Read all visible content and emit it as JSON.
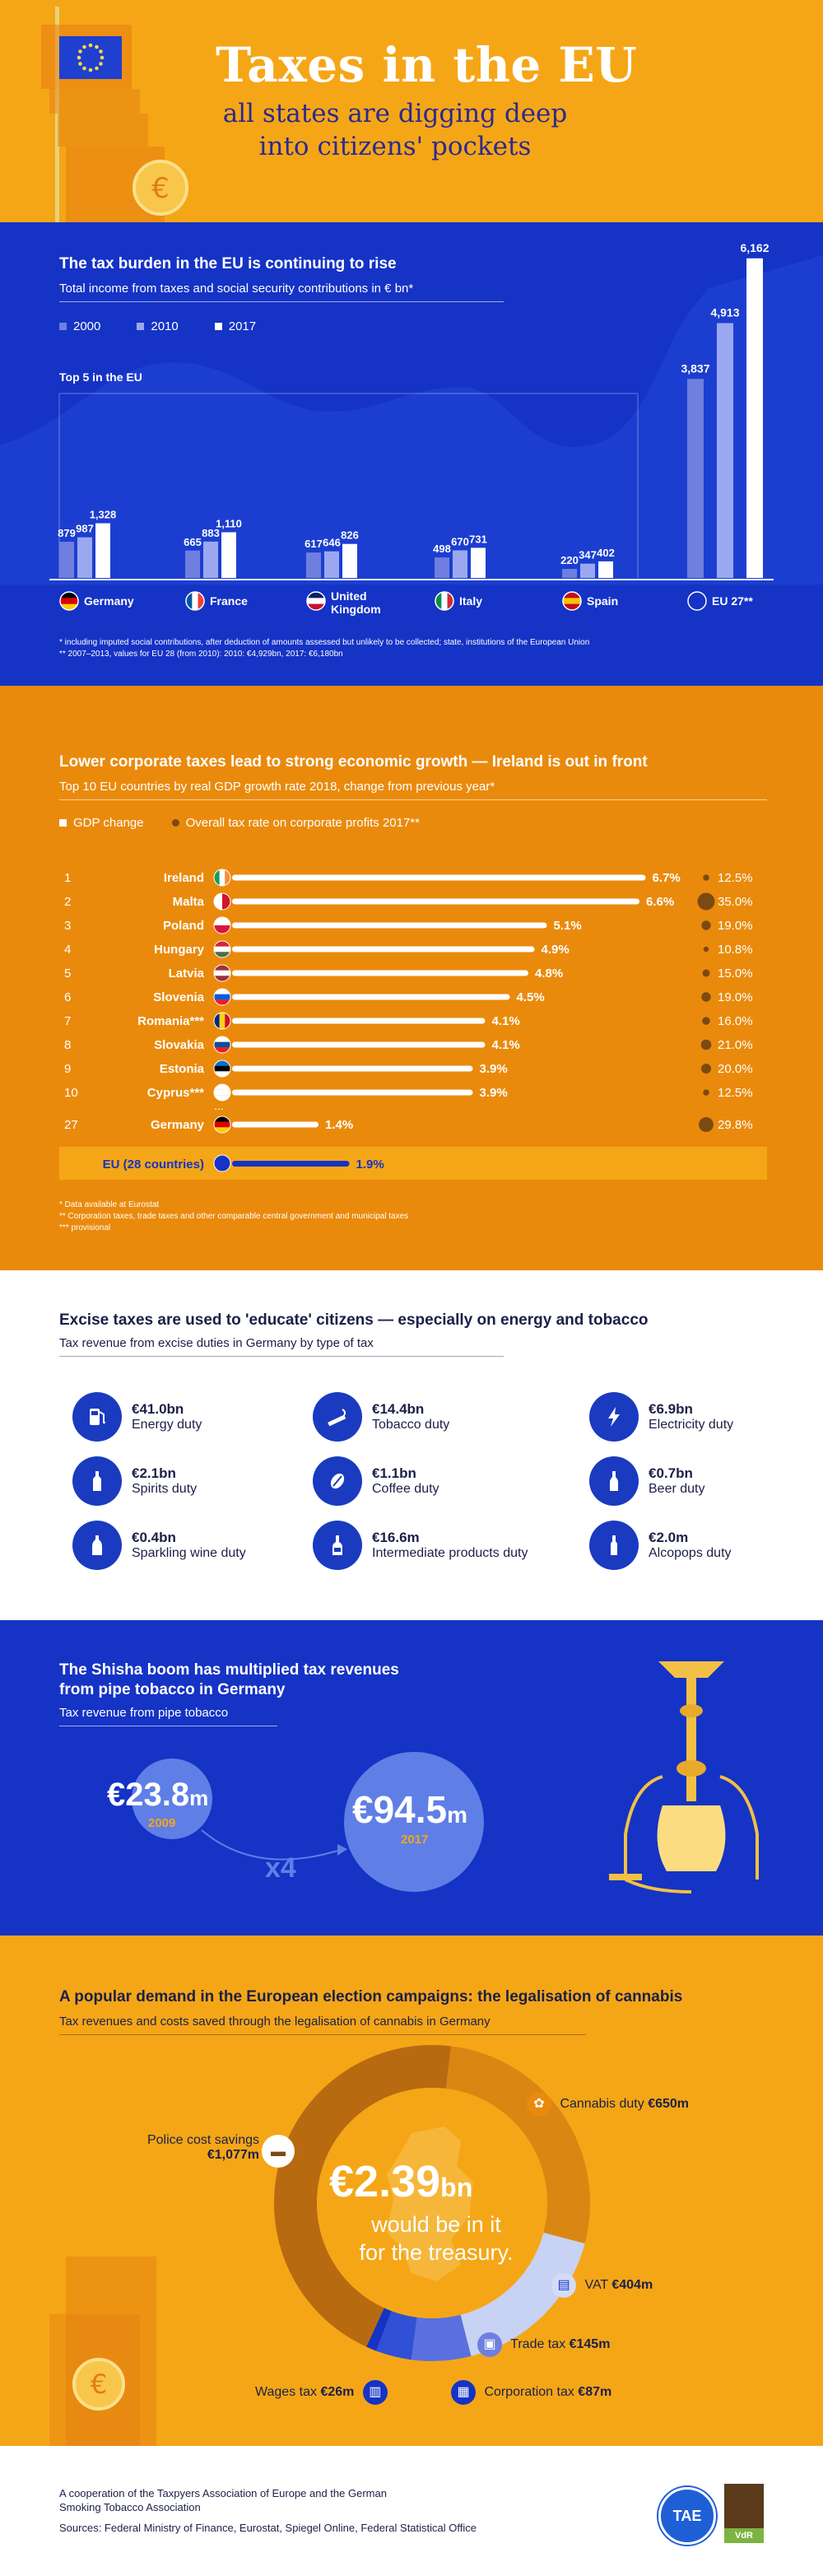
{
  "header": {
    "title": "Taxes in the EU",
    "subtitle_line1": "all states are digging deep",
    "subtitle_line2": "into citizens' pockets"
  },
  "colors": {
    "orange": "#f5a617",
    "dark_orange": "#ea8a0c",
    "blue": "#1533c5",
    "navy": "#1b2047",
    "light_blue": "#6f7fe0",
    "pale_blue": "#c7d0f5"
  },
  "burden": {
    "title": "The tax burden in the EU is continuing to rise",
    "subtitle": "Total income from taxes and social security contributions in € bn*",
    "legend": [
      "2000",
      "2010",
      "2017"
    ],
    "top5_label": "Top 5 in the EU",
    "footnote1": "*  including imputed social contributions, after deduction of amounts assessed but unlikely to be collected; state, institutions of the European Union",
    "footnote2": "** 2007–2013, values for EU 28 (from 2010): 2010: €4,929bn, 2017: €6,180bn"
  },
  "chart_data": [
    {
      "type": "bar",
      "title": "The tax burden in the EU is continuing to rise",
      "categories": [
        "Germany",
        "France",
        "United Kingdom",
        "Italy",
        "Spain"
      ],
      "series": [
        {
          "name": "2000",
          "values": [
            879,
            665,
            617,
            498,
            220
          ]
        },
        {
          "name": "2010",
          "values": [
            987,
            883,
            646,
            670,
            347
          ]
        },
        {
          "name": "2017",
          "values": [
            1328,
            1110,
            826,
            731,
            402
          ]
        }
      ],
      "value_labels": [
        [
          "879",
          "987",
          "1,328"
        ],
        [
          "665",
          "883",
          "1,110"
        ],
        [
          "617",
          "646",
          "826"
        ],
        [
          "498",
          "670",
          "731"
        ],
        [
          "220",
          "347",
          "402"
        ]
      ],
      "country_labels": [
        "Germany",
        "France",
        "United",
        "Kingdom",
        "Italy",
        "Spain"
      ],
      "eu": {
        "label": "EU 27**",
        "values": [
          3837,
          4913,
          6162
        ],
        "value_labels": [
          "3,837",
          "4,913",
          "6,162"
        ]
      }
    },
    {
      "type": "bar",
      "title": "Lower corporate taxes lead to strong economic growth — Ireland is out in front",
      "subtitle": "Top 10 EU countries by real GDP growth rate 2018, change from previous year*",
      "legend": [
        "GDP change",
        "Overall tax rate on corporate profits 2017**"
      ],
      "rows": [
        {
          "rank": "1",
          "country": "Ireland",
          "gdp": 6.7,
          "gdp_label": "6.7%",
          "tax": 12.5,
          "tax_label": "12.5%"
        },
        {
          "rank": "2",
          "country": "Malta",
          "gdp": 6.6,
          "gdp_label": "6.6%",
          "tax": 35.0,
          "tax_label": "35.0%"
        },
        {
          "rank": "3",
          "country": "Poland",
          "gdp": 5.1,
          "gdp_label": "5.1%",
          "tax": 19.0,
          "tax_label": "19.0%"
        },
        {
          "rank": "4",
          "country": "Hungary",
          "gdp": 4.9,
          "gdp_label": "4.9%",
          "tax": 10.8,
          "tax_label": "10.8%"
        },
        {
          "rank": "5",
          "country": "Latvia",
          "gdp": 4.8,
          "gdp_label": "4.8%",
          "tax": 15.0,
          "tax_label": "15.0%"
        },
        {
          "rank": "6",
          "country": "Slovenia",
          "gdp": 4.5,
          "gdp_label": "4.5%",
          "tax": 19.0,
          "tax_label": "19.0%"
        },
        {
          "rank": "7",
          "country": "Romania***",
          "gdp": 4.1,
          "gdp_label": "4.1%",
          "tax": 16.0,
          "tax_label": "16.0%"
        },
        {
          "rank": "8",
          "country": "Slovakia",
          "gdp": 4.1,
          "gdp_label": "4.1%",
          "tax": 21.0,
          "tax_label": "21.0%"
        },
        {
          "rank": "9",
          "country": "Estonia",
          "gdp": 3.9,
          "gdp_label": "3.9%",
          "tax": 20.0,
          "tax_label": "20.0%"
        },
        {
          "rank": "10",
          "country": "Cyprus***",
          "gdp": 3.9,
          "gdp_label": "3.9%",
          "tax": 12.5,
          "tax_label": "12.5%"
        },
        {
          "rank": "27",
          "country": "Germany",
          "gdp": 1.4,
          "gdp_label": "1.4%",
          "tax": 29.8,
          "tax_label": "29.8%"
        }
      ],
      "eu": {
        "label": "EU (28 countries)",
        "gdp": 1.9,
        "gdp_label": "1.9%"
      },
      "footnotes": [
        "*  Data available at Eurostat",
        "**  Corporation taxes, trade taxes and other comparable central government and municipal taxes",
        "*** provisional"
      ]
    },
    {
      "type": "pie",
      "title": "A popular demand in the European election campaigns: the legalisation of cannabis",
      "subtitle": "Tax revenues and costs saved through the legalisation of cannabis in Germany",
      "slices": [
        {
          "label": "Cannabis duty",
          "value": 650,
          "value_label": "€650m"
        },
        {
          "label": "VAT",
          "value": 404,
          "value_label": "€404m"
        },
        {
          "label": "Trade tax",
          "value": 145,
          "value_label": "€145m"
        },
        {
          "label": "Corporation tax",
          "value": 87,
          "value_label": "€87m"
        },
        {
          "label": "Wages tax",
          "value": 26,
          "value_label": "€26m"
        },
        {
          "label": "Police cost savings",
          "value": 1077,
          "value_label": "€1,077m"
        }
      ],
      "center_value": "€2.39",
      "center_unit": "bn",
      "center_line1": "would be in it",
      "center_line2": "for the treasury."
    }
  ],
  "excise": {
    "title": "Excise taxes are used to 'educate' citizens — especially on energy and tobacco",
    "subtitle": "Tax revenue from excise duties in Germany by type of tax",
    "items": [
      {
        "value": "€41.0bn",
        "label": "Energy duty",
        "icon": "fuel-pump-icon"
      },
      {
        "value": "€14.4bn",
        "label": "Tobacco duty",
        "icon": "cigarette-icon"
      },
      {
        "value": "€6.9bn",
        "label": "Electricity duty",
        "icon": "lightning-icon"
      },
      {
        "value": "€2.1bn",
        "label": "Spirits duty",
        "icon": "spirits-bottle-icon"
      },
      {
        "value": "€1.1bn",
        "label": "Coffee duty",
        "icon": "coffee-icon"
      },
      {
        "value": "€0.7bn",
        "label": "Beer duty",
        "icon": "beer-bottle-icon"
      },
      {
        "value": "€0.4bn",
        "label": "Sparkling wine duty",
        "icon": "sparkling-wine-icon"
      },
      {
        "value": "€16.6m",
        "label": "Intermediate products duty",
        "icon": "wine-bottle-icon"
      },
      {
        "value": "€2.0m",
        "label": "Alcopops duty",
        "icon": "alcopop-bottle-icon"
      }
    ]
  },
  "shisha": {
    "title_line1": "The Shisha boom has multiplied tax revenues",
    "title_line2": "from pipe tobacco in Germany",
    "subtitle": "Tax revenue from pipe tobacco",
    "v2009": "€23.8",
    "v2009_unit": "m",
    "y2009": "2009",
    "v2017": "€94.5",
    "v2017_unit": "m",
    "y2017": "2017",
    "multiplier": "x4"
  },
  "cannabis_title": "A popular demand in the European election campaigns: the legalisation of cannabis",
  "cannabis_subtitle": "Tax revenues and costs saved through the legalisation of cannabis in Germany",
  "footer": {
    "line1": "A cooperation of the Taxpyers Association of Europe and the German",
    "line2": "Smoking Tobacco Association",
    "sources": "Sources: Federal Ministry of Finance, Eurostat, Spiegel Online, Federal Statistical Office",
    "logo1": "TAE",
    "logo2": "VdR"
  }
}
